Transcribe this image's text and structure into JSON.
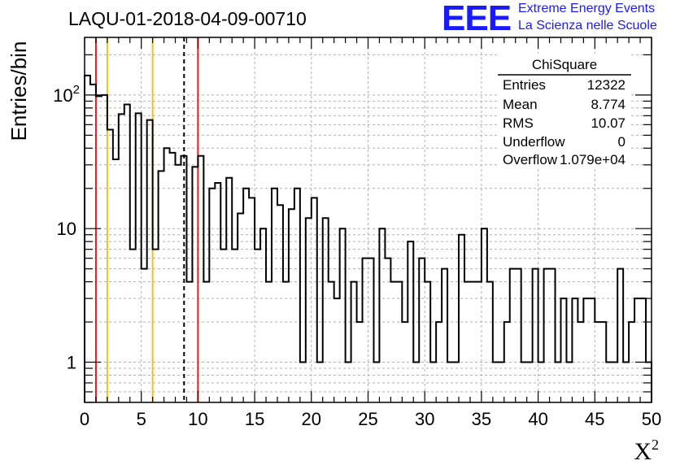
{
  "title": "LAQU-01-2018-04-09-00710",
  "logo": {
    "mark": "EEE",
    "line1": "Extreme Energy Events",
    "line2": "La Scienza nelle Scuole"
  },
  "colors": {
    "histogram": "#000000",
    "grid": "#b0b0b0",
    "red_line": "#e02020",
    "yellow_line": "#f0c020",
    "logo": "#1a1aff"
  },
  "stats_box": {
    "title": "ChiSquare",
    "rows": [
      {
        "label": "Entries",
        "value": "12322"
      },
      {
        "label": "Mean",
        "value": "8.774"
      },
      {
        "label": "RMS",
        "value": "10.07"
      },
      {
        "label": "Underflow",
        "value": "0"
      },
      {
        "label": "Overflow",
        "value": "1.079e+04"
      }
    ]
  },
  "chart_data": {
    "type": "histogram",
    "xlabel": "X²",
    "ylabel": "Entries/bin",
    "xlim": [
      0,
      50
    ],
    "ylim": [
      0.5,
      270
    ],
    "yscale": "log",
    "grid": true,
    "bin_width": 0.5,
    "x_ticks": [
      "0",
      "5",
      "10",
      "15",
      "20",
      "25",
      "30",
      "35",
      "40",
      "45",
      "50"
    ],
    "y_ticks": [
      {
        "value": 1,
        "label": "1"
      },
      {
        "value": 10,
        "label": "10"
      },
      {
        "value": 100,
        "label": "10",
        "exp": "2"
      }
    ],
    "values": [
      140,
      120,
      98,
      100,
      55,
      33,
      72,
      85,
      7,
      73,
      5,
      65,
      7,
      27,
      40,
      37,
      30,
      35,
      4,
      29,
      35,
      4,
      20,
      22,
      7,
      24,
      7,
      13,
      20,
      17,
      7,
      10,
      4,
      20,
      15,
      4,
      14,
      20,
      1,
      12,
      17,
      1,
      12,
      4,
      3,
      10,
      1,
      4,
      2,
      6,
      6,
      1,
      10,
      6,
      4,
      4,
      2,
      8,
      1,
      6,
      4,
      1,
      2,
      5,
      1,
      1,
      9,
      4,
      4,
      4,
      10,
      4,
      1,
      1,
      2,
      5,
      5,
      1,
      1,
      5,
      1,
      5,
      5,
      1,
      3,
      1,
      3,
      2,
      3,
      3,
      2,
      2,
      1,
      1,
      5,
      1,
      2,
      3,
      3,
      1
    ],
    "vertical_lines": [
      {
        "x": 1,
        "style": "solid",
        "color": "red"
      },
      {
        "x": 2,
        "style": "solid",
        "color": "yellow"
      },
      {
        "x": 6,
        "style": "solid",
        "color": "yellow"
      },
      {
        "x": 8.774,
        "style": "dashed",
        "color": "black"
      },
      {
        "x": 10,
        "style": "solid",
        "color": "red"
      }
    ]
  }
}
